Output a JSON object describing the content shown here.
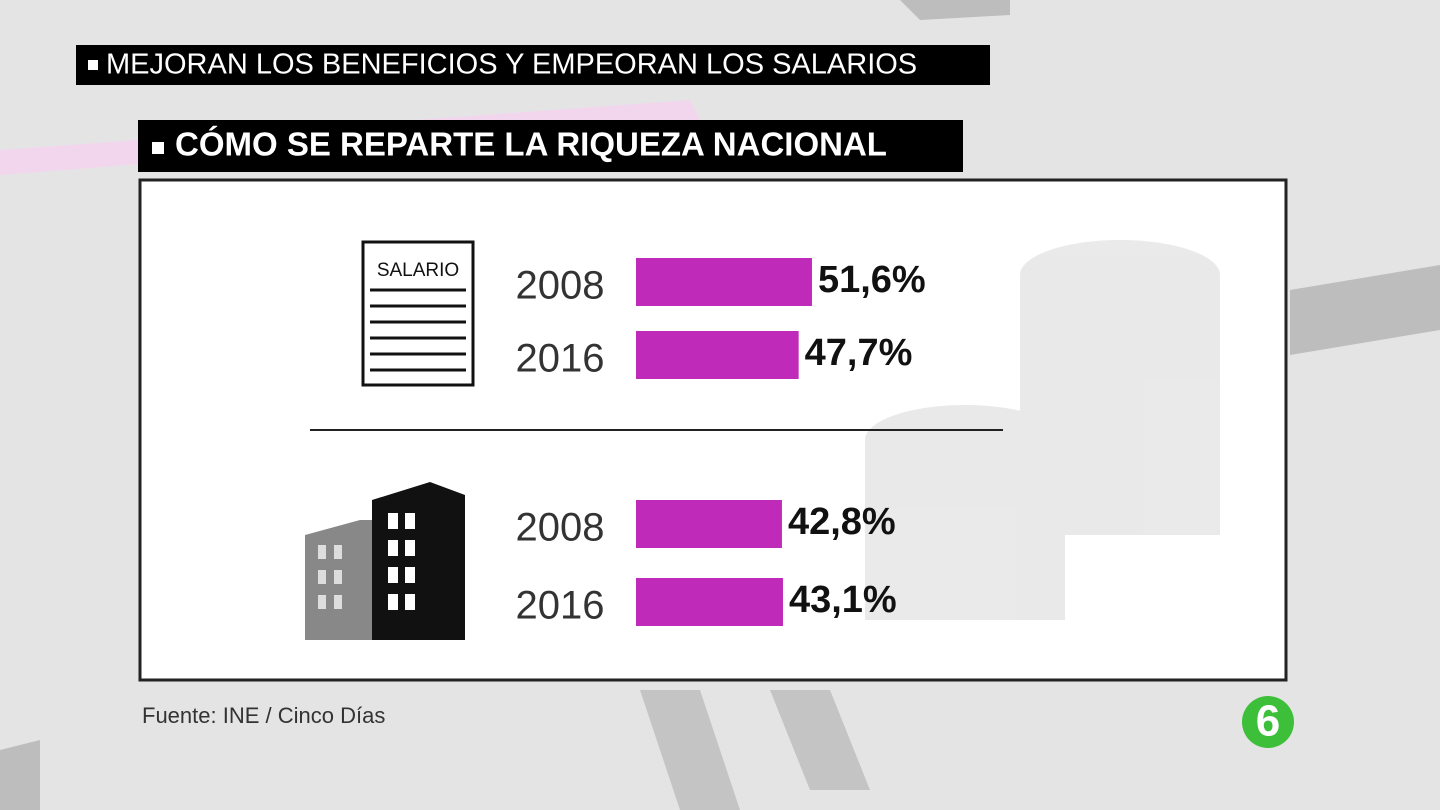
{
  "header": "MEJORAN LOS BENEFICIOS Y EMPEORAN LOS SALARIOS",
  "title": "CÓMO SE REPARTE LA RIQUEZA NACIONAL",
  "source": "Fuente: INE / Cinco Días",
  "logo": "6",
  "chart_data": [
    {
      "type": "bar",
      "orientation": "horizontal",
      "icon_label": "SALARIO",
      "categories": [
        "2008",
        "2016"
      ],
      "values": [
        51.6,
        47.7
      ],
      "value_labels": [
        "51,6%",
        "47,7%"
      ],
      "color": "#c02ab8"
    },
    {
      "type": "bar",
      "orientation": "horizontal",
      "categories": [
        "2008",
        "2016"
      ],
      "values": [
        42.8,
        43.1
      ],
      "value_labels": [
        "42,8%",
        "43,1%"
      ],
      "color": "#c02ab8"
    }
  ]
}
